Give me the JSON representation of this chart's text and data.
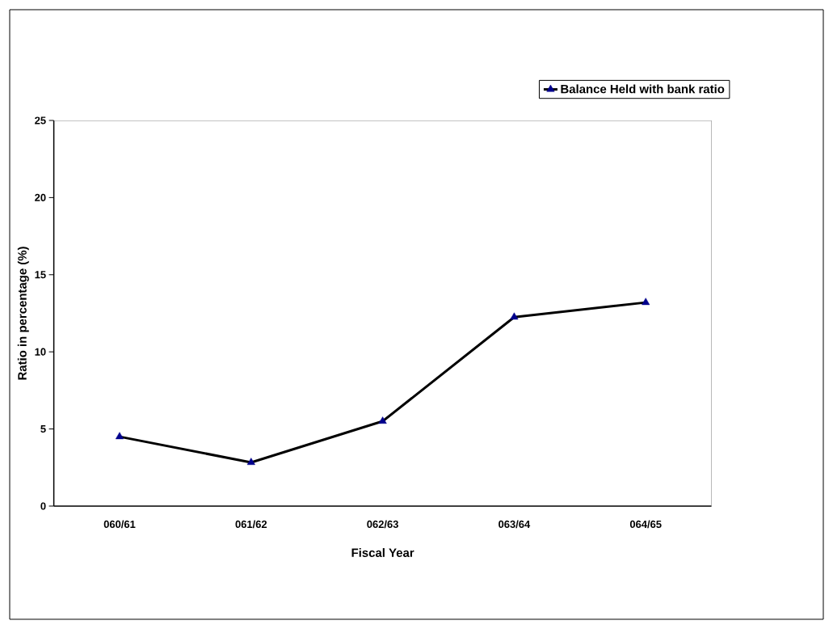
{
  "chart_data": {
    "type": "line",
    "xlabel": "Fiscal Year",
    "ylabel": "Ratio in percentage (%)",
    "categories": [
      "060/61",
      "061/62",
      "062/63",
      "063/64",
      "064/65"
    ],
    "series": [
      {
        "name": "Balance Held with bank ratio",
        "color": "#000000",
        "values": [
          4.5,
          2.83,
          5.5,
          12.25,
          13.2
        ]
      }
    ],
    "ylim": [
      0,
      25
    ],
    "yticks": [
      0,
      5,
      10,
      15,
      20,
      25
    ],
    "marker": "triangle",
    "line_style": "solid",
    "legend": "top right"
  }
}
